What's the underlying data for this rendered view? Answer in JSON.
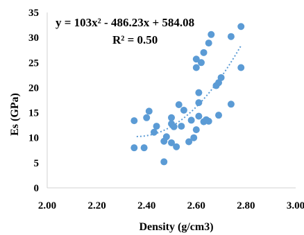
{
  "chart_data": {
    "type": "scatter",
    "xlabel": "Density (g/cm3)",
    "ylabel": "Es (GPa)",
    "xlim": [
      2.0,
      3.0
    ],
    "ylim": [
      0,
      35
    ],
    "x_ticks": [
      "2.00",
      "2.20",
      "2.40",
      "2.60",
      "2.80",
      "3.00"
    ],
    "y_ticks": [
      "0",
      "5",
      "10",
      "15",
      "20",
      "25",
      "30",
      "35"
    ],
    "grid": false,
    "legend": "none",
    "marker_color": "#5b9bd5",
    "trendline": {
      "type": "polynomial-2",
      "coefficients": [
        103,
        -486.23,
        584.08
      ],
      "x_range": [
        2.36,
        2.78
      ],
      "style": "dotted",
      "color": "#5b9bd5"
    },
    "equation_label": "y = 103x² - 486.23x + 584.08",
    "r2_label": "R² = 0.50",
    "points": [
      {
        "x": 2.35,
        "y": 13.4
      },
      {
        "x": 2.35,
        "y": 8.0
      },
      {
        "x": 2.39,
        "y": 8.0
      },
      {
        "x": 2.4,
        "y": 14.0
      },
      {
        "x": 2.41,
        "y": 15.3
      },
      {
        "x": 2.43,
        "y": 11.1
      },
      {
        "x": 2.44,
        "y": 12.3
      },
      {
        "x": 2.47,
        "y": 5.2
      },
      {
        "x": 2.47,
        "y": 9.3
      },
      {
        "x": 2.48,
        "y": 10.2
      },
      {
        "x": 2.5,
        "y": 9.0
      },
      {
        "x": 2.5,
        "y": 12.8
      },
      {
        "x": 2.5,
        "y": 14.0
      },
      {
        "x": 2.51,
        "y": 12.2
      },
      {
        "x": 2.52,
        "y": 8.2
      },
      {
        "x": 2.53,
        "y": 16.6
      },
      {
        "x": 2.54,
        "y": 12.3
      },
      {
        "x": 2.55,
        "y": 15.5
      },
      {
        "x": 2.57,
        "y": 9.2
      },
      {
        "x": 2.58,
        "y": 13.5
      },
      {
        "x": 2.59,
        "y": 10.0
      },
      {
        "x": 2.6,
        "y": 11.6
      },
      {
        "x": 2.6,
        "y": 24.0
      },
      {
        "x": 2.6,
        "y": 25.7
      },
      {
        "x": 2.61,
        "y": 19.0
      },
      {
        "x": 2.61,
        "y": 17.0
      },
      {
        "x": 2.61,
        "y": 14.3
      },
      {
        "x": 2.62,
        "y": 25.0
      },
      {
        "x": 2.63,
        "y": 27.0
      },
      {
        "x": 2.63,
        "y": 13.2
      },
      {
        "x": 2.64,
        "y": 13.6
      },
      {
        "x": 2.65,
        "y": 13.3
      },
      {
        "x": 2.65,
        "y": 28.9
      },
      {
        "x": 2.66,
        "y": 30.6
      },
      {
        "x": 2.68,
        "y": 20.4
      },
      {
        "x": 2.69,
        "y": 21.0
      },
      {
        "x": 2.69,
        "y": 14.5
      },
      {
        "x": 2.7,
        "y": 22.0
      },
      {
        "x": 2.74,
        "y": 16.7
      },
      {
        "x": 2.74,
        "y": 30.2
      },
      {
        "x": 2.78,
        "y": 32.2
      },
      {
        "x": 2.78,
        "y": 24.0
      }
    ]
  }
}
